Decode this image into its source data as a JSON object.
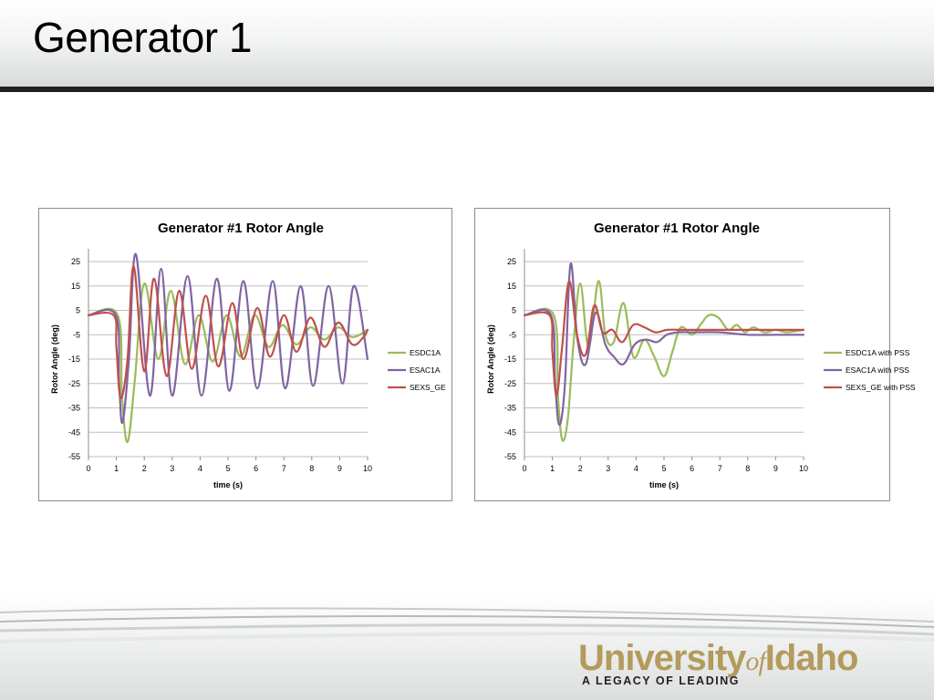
{
  "slide": {
    "title": "Generator 1"
  },
  "logo": {
    "name_part1": "University",
    "name_of": "of",
    "name_part2": "Idaho",
    "tagline": "A LEGACY OF LEADING",
    "color": "#b39b5c"
  },
  "chart_data": [
    {
      "type": "line",
      "title": "Generator #1 Rotor Angle",
      "xlabel": "time (s)",
      "ylabel": "Rotor Angle (deg)",
      "xlim": [
        0,
        10
      ],
      "ylim": [
        -55,
        25
      ],
      "xticks": [
        0,
        1,
        2,
        3,
        4,
        5,
        6,
        7,
        8,
        9,
        10
      ],
      "yticks": [
        25,
        15,
        5,
        -5,
        -15,
        -25,
        -35,
        -45,
        -55
      ],
      "grid": true,
      "legend": "right",
      "series": [
        {
          "name": "ESDC1A",
          "color": "#9bbb59",
          "x": [
            0,
            1.05,
            1.2,
            1.4,
            1.65,
            2.0,
            2.5,
            2.95,
            3.45,
            3.95,
            4.45,
            4.95,
            5.45,
            5.95,
            6.45,
            6.95,
            7.45,
            7.95,
            8.45,
            8.95,
            9.45,
            10.0
          ],
          "y": [
            3,
            3,
            -30,
            -49,
            -25,
            16,
            -15,
            13,
            -17,
            3,
            -16,
            3,
            -14,
            3,
            -10,
            -1,
            -9,
            -2,
            -7,
            -2,
            -6,
            -3
          ]
        },
        {
          "name": "ESAC1A",
          "color": "#8064a2",
          "x": [
            0,
            0.98,
            1.1,
            1.22,
            1.45,
            1.7,
            2.2,
            2.6,
            3.0,
            3.55,
            4.05,
            4.6,
            5.05,
            5.55,
            6.05,
            6.6,
            7.05,
            7.6,
            8.05,
            8.6,
            9.1,
            9.5,
            10.0
          ],
          "y": [
            3,
            3,
            -25,
            -41,
            -15,
            28,
            -30,
            22,
            -30,
            19,
            -30,
            18,
            -28,
            17,
            -27,
            17,
            -27,
            15,
            -26,
            15,
            -25,
            15,
            -15
          ]
        },
        {
          "name": "SEXS_GE",
          "color": "#c0504d",
          "x": [
            0,
            0.9,
            1.0,
            1.15,
            1.4,
            1.62,
            2.0,
            2.35,
            2.8,
            3.25,
            3.7,
            4.2,
            4.65,
            5.15,
            5.55,
            6.05,
            6.5,
            7.0,
            7.45,
            7.95,
            8.45,
            8.95,
            9.45,
            9.85,
            10.0
          ],
          "y": [
            3,
            3,
            -10,
            -31,
            -15,
            23,
            -20,
            18,
            -22,
            13,
            -19,
            11,
            -18,
            8,
            -15,
            6,
            -14,
            3,
            -12,
            2,
            -10,
            0,
            -9,
            -6,
            -3
          ]
        }
      ]
    },
    {
      "type": "line",
      "title": "Generator #1 Rotor Angle",
      "xlabel": "time (s)",
      "ylabel": "Rotor Angle (deg)",
      "xlim": [
        0,
        10
      ],
      "ylim": [
        -55,
        25
      ],
      "xticks": [
        0,
        1,
        2,
        3,
        4,
        5,
        6,
        7,
        8,
        9,
        10
      ],
      "yticks": [
        25,
        15,
        5,
        -5,
        -15,
        -25,
        -35,
        -45,
        -55
      ],
      "grid": true,
      "legend": "right",
      "series": [
        {
          "name": "ESDC1A with PSS",
          "color": "#9bbb59",
          "x": [
            0,
            1.05,
            1.2,
            1.35,
            1.55,
            1.75,
            2.0,
            2.3,
            2.65,
            2.9,
            3.2,
            3.55,
            3.9,
            4.3,
            4.65,
            5.0,
            5.3,
            5.6,
            6.0,
            6.3,
            6.6,
            6.95,
            7.3,
            7.6,
            7.9,
            8.2,
            8.6,
            9.0,
            9.4,
            10.0
          ],
          "y": [
            3,
            3,
            -30,
            -48,
            -40,
            -10,
            16,
            -10,
            17,
            -5,
            -8,
            8,
            -14,
            -7,
            -14,
            -22,
            -12,
            -2,
            -5,
            -1,
            3,
            2,
            -3,
            -1,
            -4,
            -2,
            -4,
            -3,
            -4,
            -3
          ]
        },
        {
          "name": "ESAC1A with PSS",
          "color": "#8064a2",
          "x": [
            0,
            0.95,
            1.1,
            1.25,
            1.45,
            1.65,
            1.9,
            2.2,
            2.55,
            2.9,
            3.2,
            3.55,
            3.95,
            4.35,
            4.75,
            5.1,
            5.5,
            6.0,
            7.0,
            8.0,
            9.0,
            10.0
          ],
          "y": [
            3,
            3,
            -25,
            -42,
            -25,
            24,
            -7,
            -17,
            4,
            -9,
            -14,
            -17,
            -9,
            -7,
            -8,
            -5,
            -4,
            -4,
            -4,
            -5,
            -5,
            -5
          ]
        },
        {
          "name": "SEXS_GE with PSS",
          "color": "#c0504d",
          "x": [
            0,
            0.9,
            1.0,
            1.15,
            1.35,
            1.6,
            1.9,
            2.2,
            2.5,
            2.8,
            3.15,
            3.5,
            3.9,
            4.3,
            4.7,
            5.1,
            5.6,
            6.2,
            7.0,
            8.0,
            9.0,
            10.0
          ],
          "y": [
            3,
            3,
            -12,
            -30,
            -10,
            17,
            -6,
            -13,
            7,
            -4,
            -3,
            -8,
            -1,
            -2,
            -4,
            -3,
            -3,
            -3,
            -3,
            -3,
            -3,
            -3
          ]
        }
      ]
    }
  ]
}
